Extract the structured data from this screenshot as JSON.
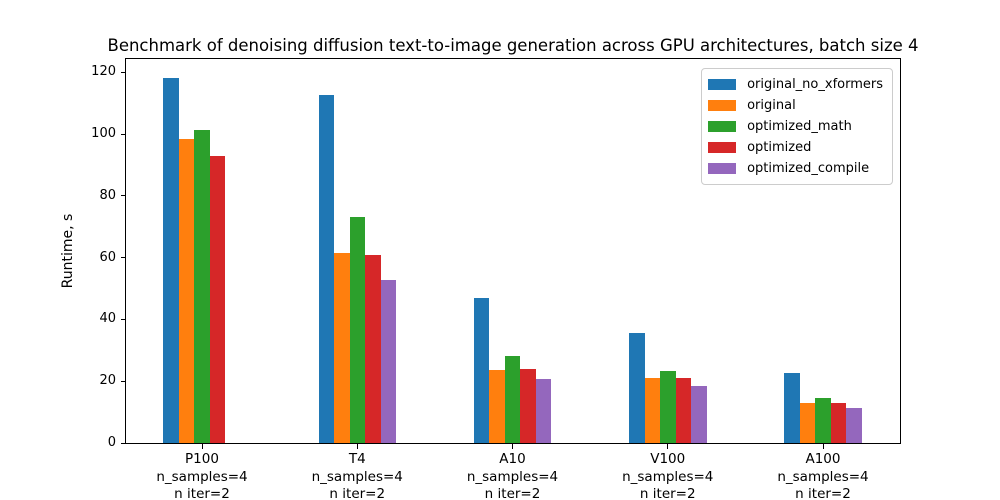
{
  "chart_data": {
    "type": "bar",
    "title": "Benchmark of denoising diffusion text-to-image generation across GPU architectures, batch size 4",
    "xlabel": "",
    "ylabel": "Runtime, s",
    "ylim": [
      0,
      124.3
    ],
    "yticks": [
      0,
      20,
      40,
      60,
      80,
      100,
      120
    ],
    "grid": false,
    "legend_position": "upper right",
    "categories": [
      "P100",
      "T4",
      "A10",
      "V100",
      "A100"
    ],
    "xtick_labels": [
      [
        "P100",
        "n_samples=4",
        "n iter=2"
      ],
      [
        "T4",
        "n_samples=4",
        "n iter=2"
      ],
      [
        "A10",
        "n_samples=4",
        "n iter=2"
      ],
      [
        "V100",
        "n_samples=4",
        "n iter=2"
      ],
      [
        "A100",
        "n_samples=4",
        "n iter=2"
      ]
    ],
    "series": [
      {
        "name": "original_no_xformers",
        "color": "#1f77b4",
        "values": [
          118.2,
          112.5,
          47.1,
          35.7,
          22.7
        ]
      },
      {
        "name": "original",
        "color": "#ff7f0e",
        "values": [
          98.3,
          61.5,
          23.5,
          21.0,
          13.0
        ]
      },
      {
        "name": "optimized_math",
        "color": "#2ca02c",
        "values": [
          101.2,
          73.0,
          28.3,
          23.2,
          14.5
        ]
      },
      {
        "name": "optimized",
        "color": "#d62728",
        "values": [
          92.8,
          61.0,
          23.9,
          21.1,
          13.0
        ]
      },
      {
        "name": "optimized_compile",
        "color": "#9467bd",
        "values": [
          null,
          52.8,
          20.8,
          18.5,
          11.2
        ]
      }
    ]
  }
}
